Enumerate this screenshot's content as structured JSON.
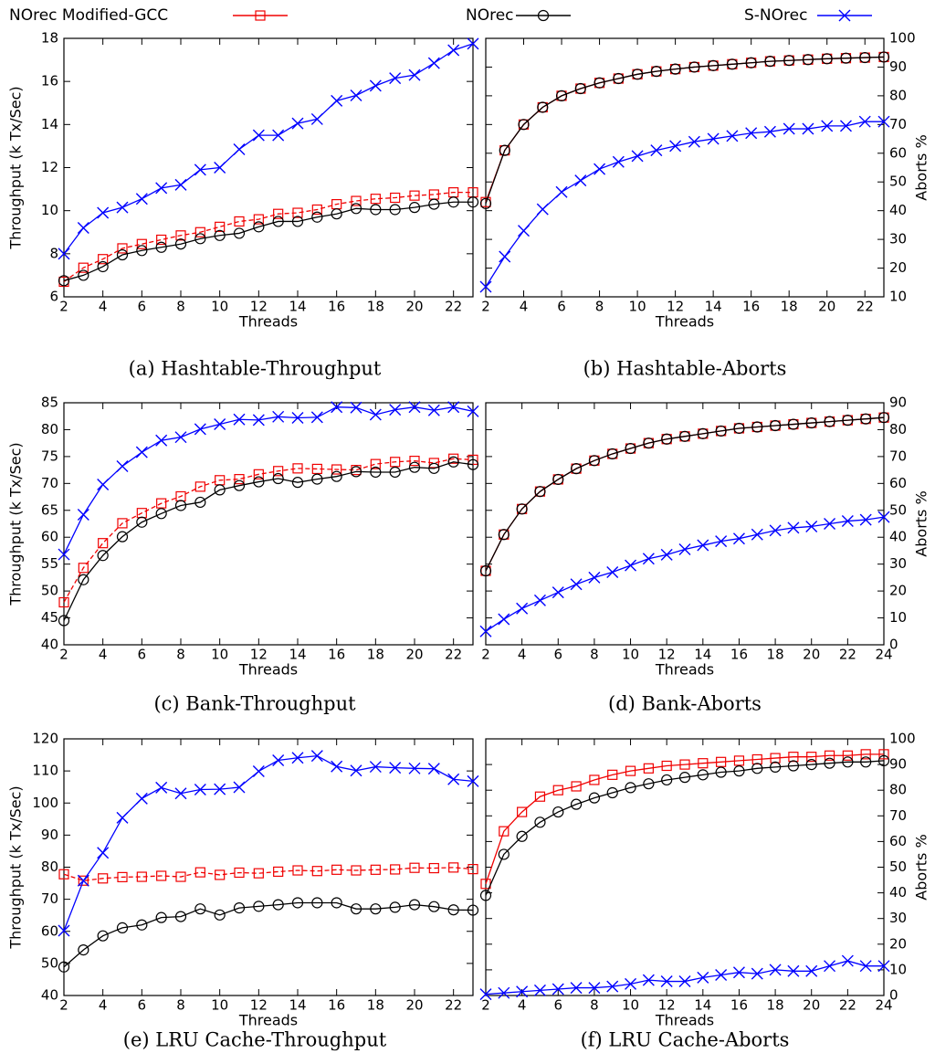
{
  "chart_data": [
    {
      "type": "line",
      "caption": "(a) Hashtable-Throughput",
      "xlabel": "Threads",
      "ylabel": "Throughput (k Tx/Sec)",
      "yaxis_side": "left",
      "x": [
        2,
        3,
        4,
        5,
        6,
        7,
        8,
        9,
        10,
        11,
        12,
        13,
        14,
        15,
        16,
        17,
        18,
        19,
        20,
        21,
        22,
        23
      ],
      "xlim": [
        2,
        23
      ],
      "xticks": [
        2,
        4,
        6,
        8,
        10,
        12,
        14,
        16,
        18,
        20,
        22
      ],
      "ylim": [
        6,
        18
      ],
      "yticks": [
        6,
        8,
        10,
        12,
        14,
        16,
        18
      ],
      "series": [
        {
          "name": "NOrec Modified-GCC",
          "color": "#f00000",
          "marker": "square",
          "dashed": true,
          "values": [
            6.7,
            7.35,
            7.75,
            8.25,
            8.45,
            8.65,
            8.85,
            9.0,
            9.25,
            9.5,
            9.6,
            9.85,
            9.9,
            10.05,
            10.3,
            10.45,
            10.55,
            10.6,
            10.7,
            10.75,
            10.85,
            10.85
          ]
        },
        {
          "name": "NOrec",
          "color": "#000000",
          "marker": "circle",
          "dashed": false,
          "values": [
            6.75,
            7.0,
            7.4,
            7.95,
            8.15,
            8.3,
            8.45,
            8.7,
            8.85,
            8.95,
            9.25,
            9.5,
            9.5,
            9.7,
            9.85,
            10.1,
            10.05,
            10.05,
            10.15,
            10.3,
            10.4,
            10.4
          ]
        },
        {
          "name": "S-NOrec",
          "color": "#0000ff",
          "marker": "cross",
          "dashed": false,
          "values": [
            8.0,
            9.2,
            9.9,
            10.15,
            10.55,
            11.05,
            11.2,
            11.9,
            12.0,
            12.85,
            13.5,
            13.5,
            14.05,
            14.25,
            15.1,
            15.35,
            15.8,
            16.15,
            16.3,
            16.85,
            17.45,
            17.75
          ]
        }
      ]
    },
    {
      "type": "line",
      "caption": "(b) Hashtable-Aborts",
      "xlabel": "Threads",
      "ylabel": "Aborts %",
      "yaxis_side": "right",
      "x": [
        2,
        3,
        4,
        5,
        6,
        7,
        8,
        9,
        10,
        11,
        12,
        13,
        14,
        15,
        16,
        17,
        18,
        19,
        20,
        21,
        22,
        23
      ],
      "xlim": [
        2,
        23
      ],
      "xticks": [
        2,
        4,
        6,
        8,
        10,
        12,
        14,
        16,
        18,
        20,
        22
      ],
      "ylim": [
        10,
        100
      ],
      "yticks": [
        10,
        20,
        30,
        40,
        50,
        60,
        70,
        80,
        90,
        100
      ],
      "series": [
        {
          "name": "NOrec Modified-GCC",
          "color": "#f00000",
          "marker": "square",
          "dashed": false,
          "values": [
            43,
            61,
            70,
            76,
            80,
            82.5,
            84.5,
            86,
            87.5,
            88.5,
            89.3,
            90,
            90.5,
            91,
            91.5,
            92,
            92.3,
            92.6,
            92.9,
            93.1,
            93.3,
            93.5
          ]
        },
        {
          "name": "NOrec",
          "color": "#000000",
          "marker": "circle",
          "dashed": false,
          "values": [
            42.5,
            61,
            70,
            76,
            80,
            82.5,
            84.5,
            86,
            87.5,
            88.5,
            89.3,
            90,
            90.5,
            91,
            91.5,
            92,
            92.3,
            92.6,
            92.9,
            93.1,
            93.3,
            93.5
          ]
        },
        {
          "name": "S-NOrec",
          "color": "#0000ff",
          "marker": "cross",
          "dashed": false,
          "values": [
            13.5,
            24,
            33,
            40.5,
            46.5,
            50.5,
            54.5,
            57,
            59,
            61,
            62.5,
            64,
            65,
            66,
            67,
            67.5,
            68.5,
            68.5,
            69.5,
            69.5,
            71,
            71
          ]
        }
      ]
    },
    {
      "type": "line",
      "caption": "(c) Bank-Throughput",
      "xlabel": "Threads",
      "ylabel": "Throughput (k Tx/Sec)",
      "yaxis_side": "left",
      "x": [
        2,
        3,
        4,
        5,
        6,
        7,
        8,
        9,
        10,
        11,
        12,
        13,
        14,
        15,
        16,
        17,
        18,
        19,
        20,
        21,
        22,
        23
      ],
      "xlim": [
        2,
        23
      ],
      "xticks": [
        2,
        4,
        6,
        8,
        10,
        12,
        14,
        16,
        18,
        20,
        22
      ],
      "ylim": [
        40,
        85
      ],
      "yticks": [
        40,
        45,
        50,
        55,
        60,
        65,
        70,
        75,
        80,
        85
      ],
      "series": [
        {
          "name": "NOrec Modified-GCC",
          "color": "#f00000",
          "marker": "square",
          "dashed": true,
          "values": [
            47.9,
            54.3,
            58.9,
            62.6,
            64.5,
            66.3,
            67.6,
            69.4,
            70.6,
            70.8,
            71.7,
            72.3,
            72.8,
            72.7,
            72.6,
            72.5,
            73.6,
            74.0,
            74.2,
            73.8,
            74.6,
            74.4
          ]
        },
        {
          "name": "NOrec",
          "color": "#000000",
          "marker": "circle",
          "dashed": false,
          "values": [
            44.5,
            52.1,
            56.6,
            60.1,
            62.8,
            64.4,
            65.9,
            66.5,
            68.8,
            69.6,
            70.3,
            70.9,
            70.2,
            70.8,
            71.3,
            72.2,
            72.1,
            72.1,
            73.0,
            72.8,
            74.0,
            73.5
          ]
        },
        {
          "name": "S-NOrec",
          "color": "#0000ff",
          "marker": "cross",
          "dashed": false,
          "values": [
            56.8,
            64.2,
            69.8,
            73.2,
            75.8,
            78.0,
            78.6,
            80.1,
            81.0,
            81.9,
            81.8,
            82.4,
            82.2,
            82.3,
            84.2,
            84.1,
            82.8,
            83.7,
            84.2,
            83.6,
            84.2,
            83.4
          ]
        }
      ]
    },
    {
      "type": "line",
      "caption": "(d) Bank-Aborts",
      "xlabel": "Threads",
      "ylabel": "Aborts %",
      "yaxis_side": "right",
      "x": [
        2,
        3,
        4,
        5,
        6,
        7,
        8,
        9,
        10,
        11,
        12,
        13,
        14,
        15,
        16,
        17,
        18,
        19,
        20,
        21,
        22,
        23,
        24
      ],
      "xlim": [
        2,
        24
      ],
      "xticks": [
        2,
        4,
        6,
        8,
        10,
        12,
        14,
        16,
        18,
        20,
        22,
        24
      ],
      "ylim": [
        0,
        90
      ],
      "yticks": [
        0,
        10,
        20,
        30,
        40,
        50,
        60,
        70,
        80,
        90
      ],
      "series": [
        {
          "name": "NOrec Modified-GCC",
          "color": "#f00000",
          "marker": "square",
          "dashed": false,
          "values": [
            27.5,
            41,
            50.5,
            57,
            61.5,
            65.5,
            68.5,
            71,
            73,
            75,
            76.5,
            77.5,
            78.5,
            79.5,
            80.5,
            81,
            81.5,
            82,
            82.5,
            83,
            83.5,
            84,
            84.5
          ]
        },
        {
          "name": "NOrec",
          "color": "#000000",
          "marker": "circle",
          "dashed": false,
          "values": [
            27.5,
            41,
            50.5,
            57,
            61.5,
            65.5,
            68.5,
            71,
            73,
            75,
            76.5,
            77.5,
            78.5,
            79.5,
            80.5,
            81,
            81.5,
            82,
            82.5,
            83,
            83.5,
            84,
            84.5
          ]
        },
        {
          "name": "S-NOrec",
          "color": "#0000ff",
          "marker": "cross",
          "dashed": false,
          "values": [
            5,
            9.5,
            13.5,
            16.5,
            19.5,
            22.5,
            25,
            27,
            29.5,
            32,
            33.5,
            35.5,
            37,
            38.5,
            39.5,
            41,
            42.5,
            43.5,
            44,
            45,
            46,
            46.5,
            47.5
          ]
        }
      ]
    },
    {
      "type": "line",
      "caption": "(e) LRU Cache-Throughput",
      "xlabel": "Threads",
      "ylabel": "Throughput (k Tx/Sec)",
      "yaxis_side": "left",
      "x": [
        2,
        3,
        4,
        5,
        6,
        7,
        8,
        9,
        10,
        11,
        12,
        13,
        14,
        15,
        16,
        17,
        18,
        19,
        20,
        21,
        22,
        23
      ],
      "xlim": [
        2,
        23
      ],
      "xticks": [
        2,
        4,
        6,
        8,
        10,
        12,
        14,
        16,
        18,
        20,
        22
      ],
      "ylim": [
        40,
        120
      ],
      "yticks": [
        40,
        50,
        60,
        70,
        80,
        90,
        100,
        110,
        120
      ],
      "series": [
        {
          "name": "NOrec Modified-GCC",
          "color": "#f00000",
          "marker": "square",
          "dashed": true,
          "values": [
            77.8,
            75.8,
            76.5,
            76.9,
            77.0,
            77.3,
            77.0,
            78.4,
            77.6,
            78.3,
            78.1,
            78.6,
            79.0,
            78.8,
            79.2,
            79.0,
            79.2,
            79.3,
            79.8,
            79.7,
            79.9,
            79.4
          ]
        },
        {
          "name": "NOrec",
          "color": "#000000",
          "marker": "circle",
          "dashed": false,
          "values": [
            48.9,
            54.2,
            58.6,
            61.1,
            62.0,
            64.3,
            64.6,
            67.0,
            65.1,
            67.3,
            67.8,
            68.3,
            68.9,
            68.9,
            68.9,
            67.0,
            67.0,
            67.5,
            68.3,
            67.7,
            66.7,
            66.6
          ]
        },
        {
          "name": "S-NOrec",
          "color": "#0000ff",
          "marker": "cross",
          "dashed": false,
          "values": [
            60.2,
            75.8,
            84.5,
            95.4,
            101.4,
            104.8,
            103.0,
            104.2,
            104.3,
            104.9,
            109.9,
            113.3,
            114.1,
            114.7,
            111.4,
            110.1,
            111.3,
            111.0,
            110.8,
            110.7,
            107.4,
            106.8
          ]
        }
      ]
    },
    {
      "type": "line",
      "caption": "(f) LRU Cache-Aborts",
      "xlabel": "Threads",
      "ylabel": "Aborts %",
      "yaxis_side": "right",
      "x": [
        2,
        3,
        4,
        5,
        6,
        7,
        8,
        9,
        10,
        11,
        12,
        13,
        14,
        15,
        16,
        17,
        18,
        19,
        20,
        21,
        22,
        23,
        24
      ],
      "xlim": [
        2,
        24
      ],
      "xticks": [
        2,
        4,
        6,
        8,
        10,
        12,
        14,
        16,
        18,
        20,
        22,
        24
      ],
      "ylim": [
        0,
        100
      ],
      "yticks": [
        0,
        10,
        20,
        30,
        40,
        50,
        60,
        70,
        80,
        90,
        100
      ],
      "series": [
        {
          "name": "NOrec Modified-GCC",
          "color": "#f00000",
          "marker": "square",
          "dashed": false,
          "values": [
            43.5,
            64,
            71.5,
            77.5,
            80,
            81.5,
            84,
            86,
            87.5,
            88.5,
            89.5,
            90,
            90.5,
            91,
            91.5,
            92,
            92.5,
            93,
            93,
            93.5,
            93.5,
            94,
            94
          ]
        },
        {
          "name": "NOrec",
          "color": "#000000",
          "marker": "circle",
          "dashed": false,
          "values": [
            39,
            55,
            62,
            67.5,
            71.5,
            74.5,
            77,
            79,
            81,
            82.5,
            84,
            85,
            86,
            87,
            87.5,
            88.5,
            89,
            89.5,
            90,
            90.5,
            91,
            91,
            91.5
          ]
        },
        {
          "name": "S-NOrec",
          "color": "#0000ff",
          "marker": "cross",
          "dashed": false,
          "values": [
            0.5,
            1,
            1.5,
            2,
            2.5,
            3,
            3,
            3.5,
            4.5,
            6,
            5.5,
            5.5,
            7,
            8,
            9,
            8.5,
            10,
            9.5,
            9.5,
            11.5,
            13.5,
            11.5,
            11.5
          ]
        }
      ]
    }
  ]
}
